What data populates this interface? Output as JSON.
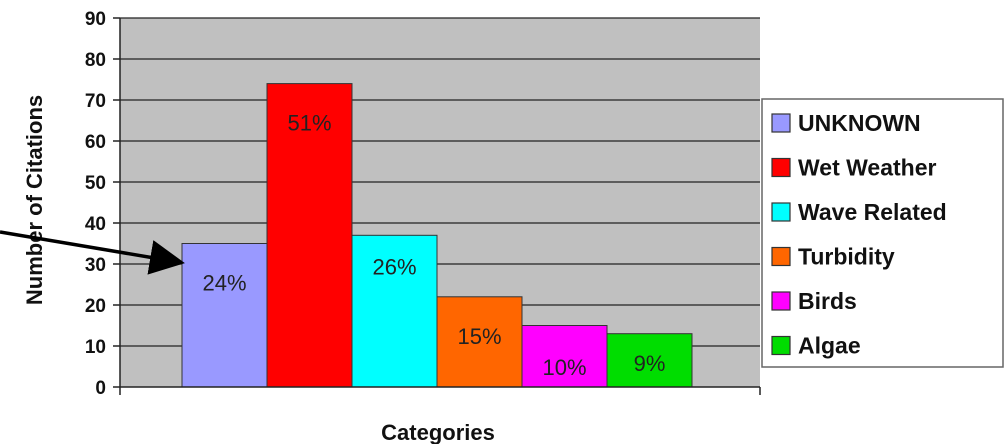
{
  "chart_data": {
    "type": "bar",
    "title": "",
    "xlabel": "Categories",
    "ylabel": "Number of Citations",
    "ylim": [
      0,
      90
    ],
    "yticks": [
      0,
      10,
      20,
      30,
      40,
      50,
      60,
      70,
      80,
      90
    ],
    "grid": true,
    "legend_position": "right",
    "plot_background": "#C0C0C0",
    "series": [
      {
        "name": "UNKNOWN",
        "value": 35,
        "label": "24%",
        "color": "#9999FF"
      },
      {
        "name": "Wet Weather",
        "value": 74,
        "label": "51%",
        "color": "#FF0000"
      },
      {
        "name": "Wave Related",
        "value": 37,
        "label": "26%",
        "color": "#00FFFF"
      },
      {
        "name": "Turbidity",
        "value": 22,
        "label": "15%",
        "color": "#FF6600"
      },
      {
        "name": "Birds",
        "value": 15,
        "label": "10%",
        "color": "#FF00FF"
      },
      {
        "name": "Algae",
        "value": 13,
        "label": "9%",
        "color": "#00DD00"
      }
    ]
  }
}
